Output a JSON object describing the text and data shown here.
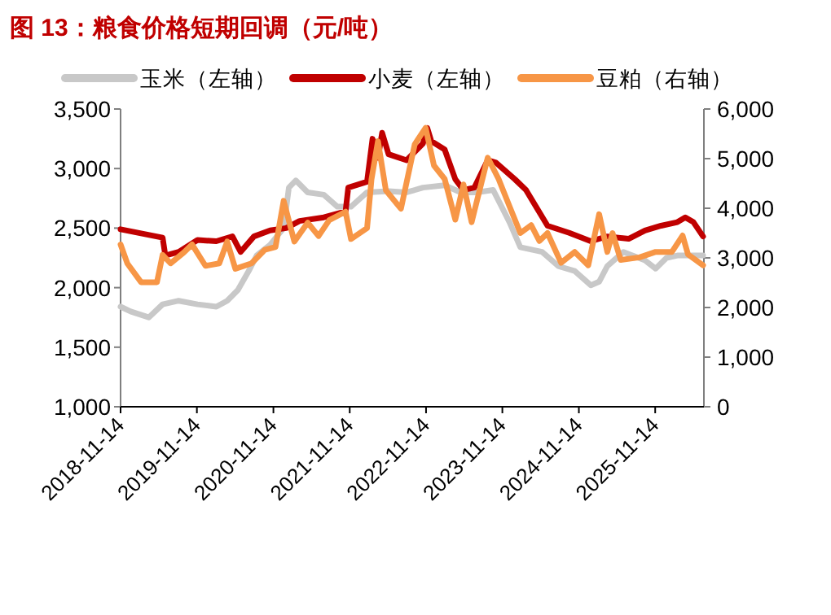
{
  "chart_data": {
    "type": "line",
    "title": "图 13：粮食价格短期回调（元/吨）",
    "legend": "top",
    "xlim": [
      "2018-11-14",
      "2026-07-05"
    ],
    "xticks": [
      "2018-11-14",
      "2019-11-14",
      "2020-11-14",
      "2021-11-14",
      "2022-11-14",
      "2023-11-14",
      "2024-11-14",
      "2025-11-14"
    ],
    "ylim": [
      1000,
      3500
    ],
    "yticks": [
      {
        "value": 1000,
        "label": "1,000"
      },
      {
        "value": 1500,
        "label": "1,500"
      },
      {
        "value": 2000,
        "label": "2,000"
      },
      {
        "value": 2500,
        "label": "2,500"
      },
      {
        "value": 3000,
        "label": "3,000"
      },
      {
        "value": 3500,
        "label": "3,500"
      }
    ],
    "y2lim": [
      0,
      6000
    ],
    "y2ticks": [
      0,
      {
        "value": 1000,
        "label": "1,000"
      },
      {
        "value": 2000,
        "label": "2,000"
      },
      {
        "value": 3000,
        "label": "3,000"
      },
      {
        "value": 4000,
        "label": "4,000"
      },
      {
        "value": 5000,
        "label": "5,000"
      },
      {
        "value": 6000,
        "label": "6,000"
      }
    ],
    "series": [
      {
        "name": "玉米（左轴）",
        "color": "#c8c8c8",
        "axis": "y",
        "x": [
          "2018-11-14",
          "2019-01-01",
          "2019-03-29",
          "2019-06-03",
          "2019-08-19",
          "2019-11-17",
          "2020-02-15",
          "2020-04-07",
          "2020-05-28",
          "2020-07-19",
          "2020-08-26",
          "2020-10-29",
          "2021-01-02",
          "2021-01-27",
          "2021-03-01",
          "2021-04-27",
          "2021-07-13",
          "2021-09-16",
          "2021-11-20",
          "2022-02-05",
          "2022-05-19",
          "2022-08-13",
          "2022-10-30",
          "2023-02-11",
          "2023-04-29",
          "2023-07-16",
          "2023-10-01",
          "2023-12-18",
          "2024-02-08",
          "2024-05-22",
          "2024-08-08",
          "2024-10-25",
          "2025-01-10",
          "2025-02-19",
          "2025-03-30",
          "2025-06-15",
          "2025-09-26",
          "2025-11-16",
          "2026-01-07",
          "2026-02-28",
          "2026-07-01"
        ],
        "values": [
          1840,
          1800,
          1750,
          1860,
          1890,
          1860,
          1840,
          1890,
          1980,
          2140,
          2270,
          2360,
          2500,
          2840,
          2900,
          2800,
          2780,
          2680,
          2680,
          2800,
          2810,
          2800,
          2840,
          2860,
          2800,
          2800,
          2820,
          2550,
          2340,
          2300,
          2180,
          2140,
          2020,
          2050,
          2180,
          2300,
          2230,
          2160,
          2250,
          2270,
          2270
        ]
      },
      {
        "name": "小麦（左轴）",
        "color": "#c00000",
        "axis": "y",
        "x": [
          "2018-11-14",
          "2019-06-03",
          "2019-06-16",
          "2019-08-19",
          "2019-11-17",
          "2020-02-15",
          "2020-05-02",
          "2020-06-10",
          "2020-08-13",
          "2020-10-29",
          "2021-01-14",
          "2021-03-19",
          "2021-07-13",
          "2021-10-25",
          "2021-11-07",
          "2022-02-05",
          "2022-03-03",
          "2022-03-29",
          "2022-04-18",
          "2022-05-19",
          "2022-08-13",
          "2022-10-30",
          "2022-11-20",
          "2022-12-09",
          "2023-02-11",
          "2023-04-03",
          "2023-05-12",
          "2023-07-03",
          "2023-09-05",
          "2023-10-14",
          "2024-01-13",
          "2024-03-06",
          "2024-06-17",
          "2024-09-29",
          "2025-01-10",
          "2025-03-30",
          "2025-07-10",
          "2025-09-26",
          "2025-12-12",
          "2026-02-28",
          "2026-04-07",
          "2026-05-16",
          "2026-07-01"
        ],
        "values": [
          2490,
          2420,
          2270,
          2300,
          2400,
          2390,
          2430,
          2300,
          2430,
          2480,
          2500,
          2560,
          2590,
          2640,
          2840,
          2890,
          3250,
          3090,
          3300,
          3120,
          3070,
          3210,
          3340,
          3230,
          3160,
          2910,
          2820,
          2840,
          3070,
          3050,
          2910,
          2820,
          2520,
          2460,
          2390,
          2430,
          2410,
          2480,
          2520,
          2550,
          2590,
          2550,
          2430
        ]
      },
      {
        "name": "豆粕（右轴）",
        "color": "#f79646",
        "axis": "y2",
        "x": [
          "2018-11-14",
          "2018-12-16",
          "2019-02-20",
          "2019-05-07",
          "2019-06-03",
          "2019-07-11",
          "2019-09-13",
          "2019-10-22",
          "2019-12-25",
          "2020-02-29",
          "2020-04-07",
          "2020-05-16",
          "2020-08-01",
          "2020-10-03",
          "2020-11-24",
          "2021-01-02",
          "2021-02-22",
          "2021-04-27",
          "2021-06-18",
          "2021-08-08",
          "2021-10-25",
          "2021-11-20",
          "2022-02-05",
          "2022-02-26",
          "2022-03-29",
          "2022-05-06",
          "2022-07-17",
          "2022-09-21",
          "2022-11-12",
          "2022-12-22",
          "2023-02-11",
          "2023-04-03",
          "2023-05-12",
          "2023-06-20",
          "2023-09-05",
          "2023-10-27",
          "2023-12-18",
          "2024-02-08",
          "2024-03-31",
          "2024-05-09",
          "2024-06-17",
          "2024-08-21",
          "2024-10-25",
          "2024-12-29",
          "2025-02-19",
          "2025-03-30",
          "2025-04-24",
          "2025-06-02",
          "2025-08-31",
          "2025-11-16",
          "2026-02-02",
          "2026-03-25",
          "2026-04-20",
          "2026-07-01"
        ],
        "values": [
          3270,
          2890,
          2510,
          2510,
          3060,
          2890,
          3110,
          3270,
          2840,
          2890,
          3330,
          2780,
          2890,
          3160,
          3220,
          4150,
          3330,
          3710,
          3440,
          3760,
          3930,
          3380,
          3600,
          4580,
          5350,
          4360,
          3990,
          5290,
          5620,
          4860,
          4590,
          3770,
          4480,
          3720,
          5020,
          4590,
          4040,
          3500,
          3660,
          3340,
          3500,
          2900,
          3120,
          2850,
          3880,
          3120,
          3500,
          2960,
          3010,
          3120,
          3120,
          3450,
          3070,
          2850
        ]
      }
    ]
  }
}
